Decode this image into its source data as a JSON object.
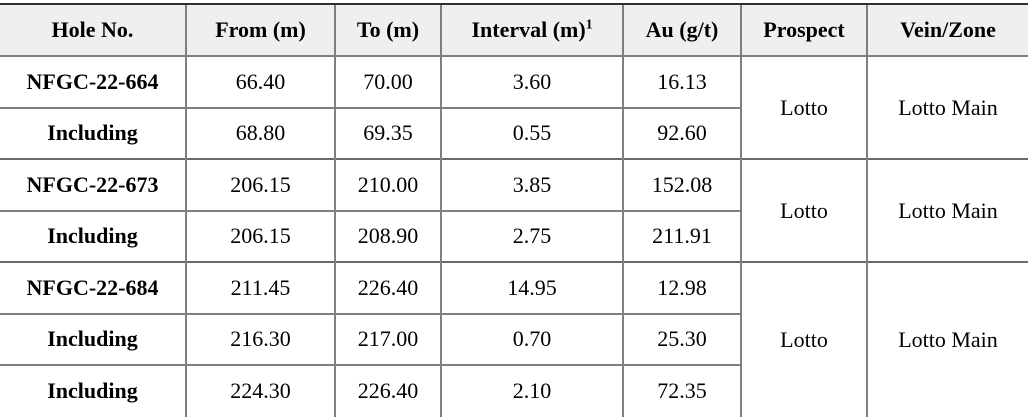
{
  "table": {
    "columns": [
      "Hole No.",
      "From (m)",
      "To (m)",
      "Interval (m)",
      "Au (g/t)",
      "Prospect",
      "Vein/Zone"
    ],
    "interval_superscript": "1",
    "colors": {
      "header_background": "#efefef",
      "grid_line": "#7f7f7f",
      "top_rule": "#2f2f2f",
      "text": "#000000"
    },
    "groups": [
      {
        "prospect": "Lotto",
        "vein_zone": "Lotto Main",
        "rows": [
          {
            "hole": "NFGC-22-664",
            "from": "66.40",
            "to": "70.00",
            "interval": "3.60",
            "au": "16.13"
          },
          {
            "hole": "Including",
            "from": "68.80",
            "to": "69.35",
            "interval": "0.55",
            "au": "92.60"
          }
        ]
      },
      {
        "prospect": "Lotto",
        "vein_zone": "Lotto Main",
        "rows": [
          {
            "hole": "NFGC-22-673",
            "from": "206.15",
            "to": "210.00",
            "interval": "3.85",
            "au": "152.08"
          },
          {
            "hole": "Including",
            "from": "206.15",
            "to": "208.90",
            "interval": "2.75",
            "au": "211.91"
          }
        ]
      },
      {
        "prospect": "Lotto",
        "vein_zone": "Lotto Main",
        "rows": [
          {
            "hole": "NFGC-22-684",
            "from": "211.45",
            "to": "226.40",
            "interval": "14.95",
            "au": "12.98"
          },
          {
            "hole": "Including",
            "from": "216.30",
            "to": "217.00",
            "interval": "0.70",
            "au": "25.30"
          },
          {
            "hole": "Including",
            "from": "224.30",
            "to": "226.40",
            "interval": "2.10",
            "au": "72.35"
          }
        ]
      }
    ]
  }
}
